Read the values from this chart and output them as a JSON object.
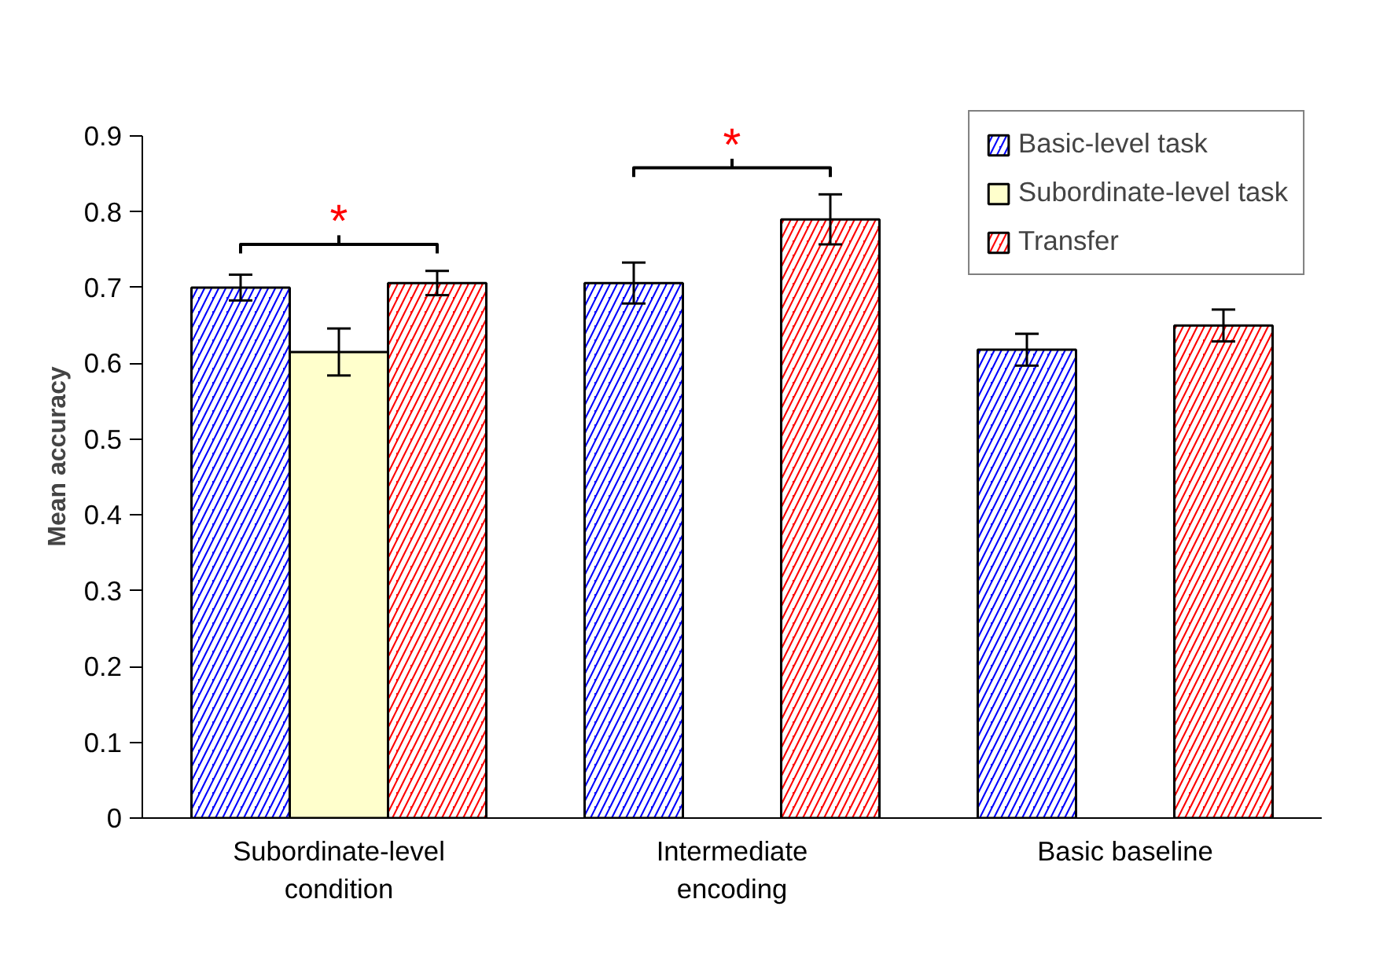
{
  "chart_data": {
    "type": "bar",
    "ylabel": "Mean accuracy",
    "categories": [
      "Subordinate-level condition",
      "Intermediate encoding",
      "Basic baseline"
    ],
    "series": [
      {
        "name": "Basic-level task",
        "color": "#0000ff",
        "values": [
          0.7,
          0.706,
          0.618
        ],
        "errors": [
          0.017,
          0.027,
          0.021
        ]
      },
      {
        "name": "Subordinate-level task",
        "color": "#ffffcc",
        "values": [
          0.615,
          null,
          null
        ],
        "errors": [
          0.031,
          null,
          null
        ]
      },
      {
        "name": "Transfer",
        "color": "#ff0000",
        "values": [
          0.706,
          0.79,
          0.65
        ],
        "errors": [
          0.016,
          0.033,
          0.021
        ]
      }
    ],
    "annotations": [
      "*",
      "*"
    ],
    "ylim": [
      0,
      0.9
    ],
    "yticks": [
      0,
      0.1,
      0.2,
      0.3,
      0.4,
      0.5,
      0.6,
      0.7,
      0.8,
      0.9
    ],
    "grid": false,
    "legend": "top right"
  }
}
